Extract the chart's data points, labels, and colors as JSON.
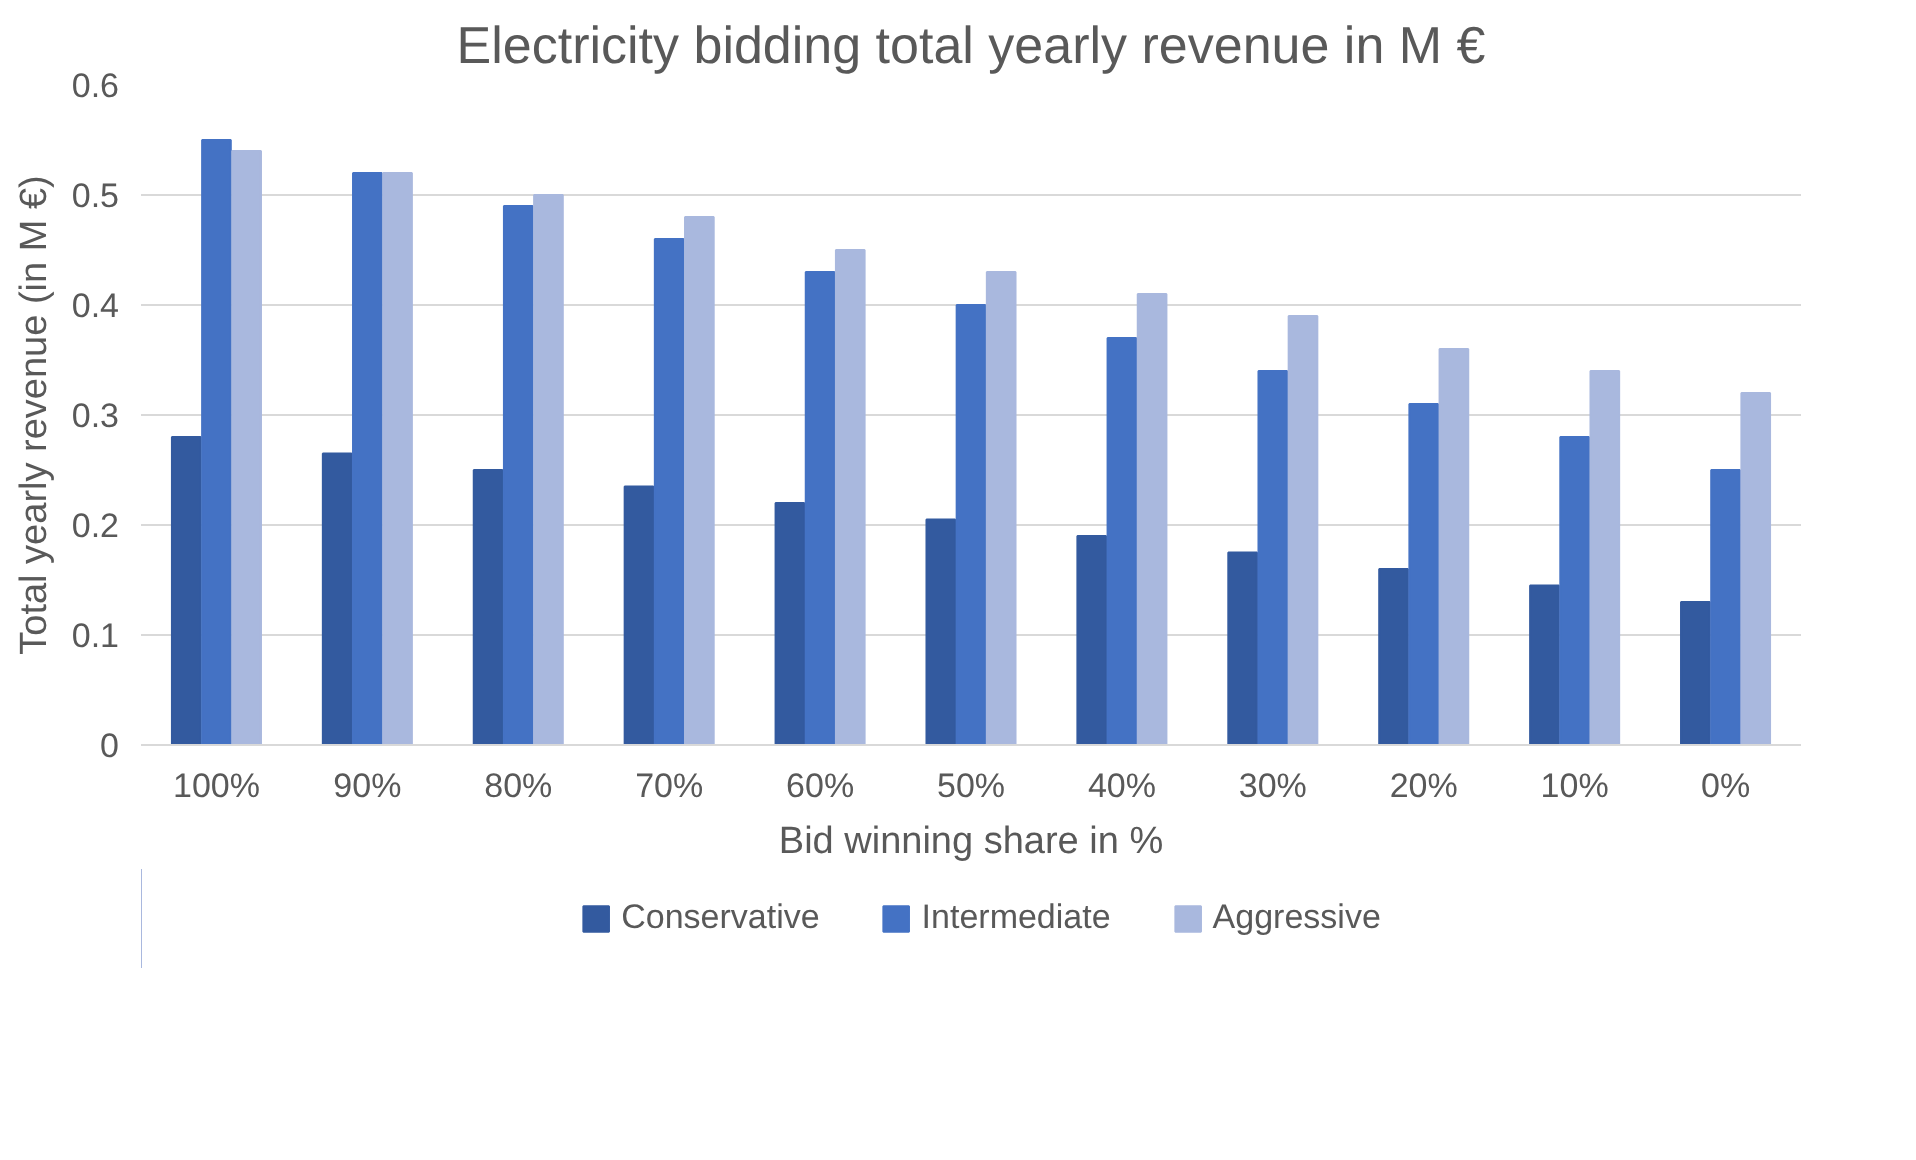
{
  "chart_data": {
    "type": "bar",
    "title": "Electricity bidding total yearly revenue in M €",
    "xlabel": "Bid winning share in %",
    "ylabel": "Total yearly revenue (in M €)",
    "categories": [
      "100%",
      "90%",
      "80%",
      "70%",
      "60%",
      "50%",
      "40%",
      "30%",
      "20%",
      "10%",
      "0%"
    ],
    "series": [
      {
        "name": "Conservative",
        "color": "#335a9f",
        "values": [
          0.28,
          0.265,
          0.25,
          0.235,
          0.22,
          0.205,
          0.19,
          0.175,
          0.16,
          0.145,
          0.13
        ]
      },
      {
        "name": "Intermediate",
        "color": "#4472c4",
        "values": [
          0.55,
          0.52,
          0.49,
          0.46,
          0.43,
          0.4,
          0.37,
          0.34,
          0.31,
          0.28,
          0.25
        ]
      },
      {
        "name": "Aggressive",
        "color": "#a9b8de",
        "values": [
          0.54,
          0.52,
          0.5,
          0.48,
          0.45,
          0.43,
          0.41,
          0.39,
          0.36,
          0.34,
          0.32
        ]
      }
    ],
    "ylim": [
      0,
      0.6
    ],
    "yticks": [
      {
        "value": 0,
        "label": "0"
      },
      0.1,
      0.2,
      0.3,
      0.4,
      0.5,
      0.6
    ],
    "grid": "y",
    "legend": "bottom"
  }
}
